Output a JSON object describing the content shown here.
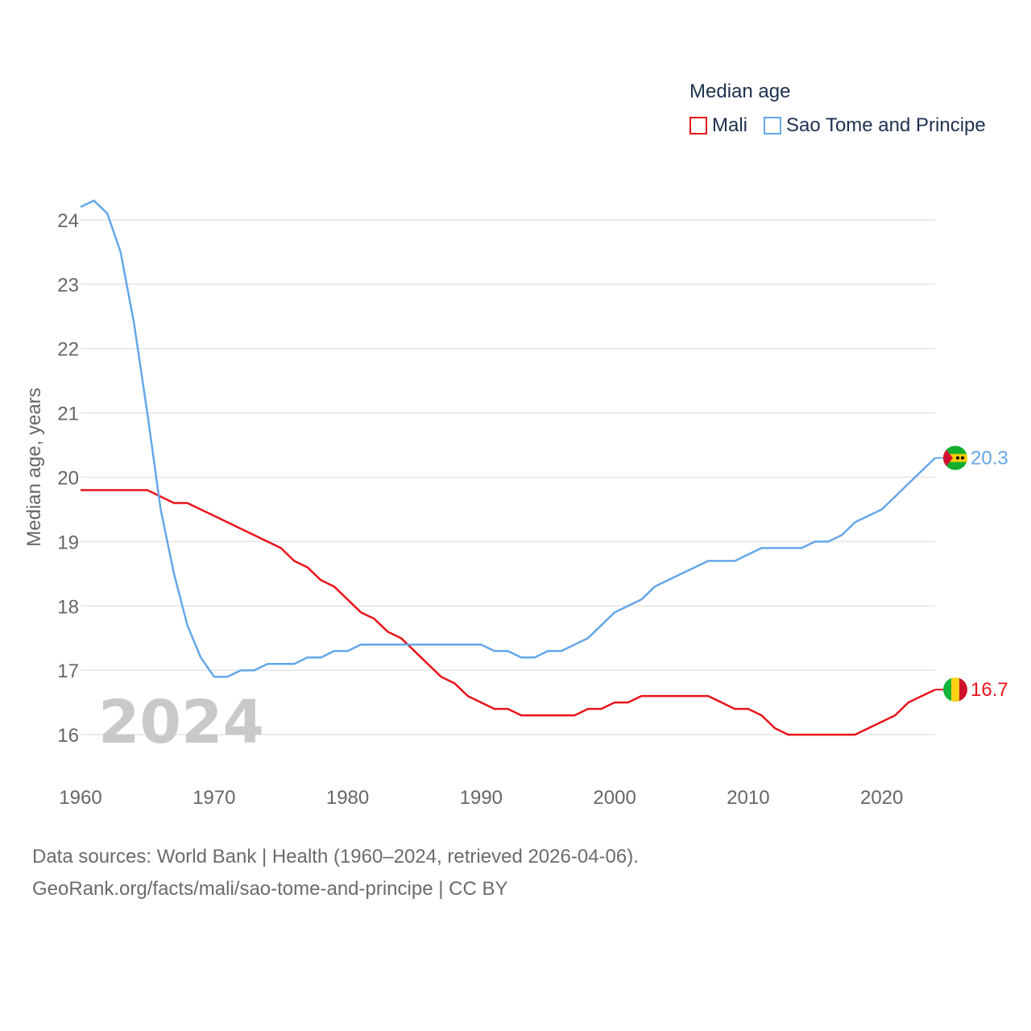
{
  "legend": {
    "title": "Median age",
    "items": [
      {
        "label": "Mali",
        "color": "#e8131b"
      },
      {
        "label": "Sao Tome and Principe",
        "color": "#64a7e8"
      }
    ]
  },
  "footer": {
    "line1": "Data sources: World Bank | Health (1960–2024, retrieved 2026-04-06).",
    "line2": "GeoRank.org/facts/mali/sao-tome-and-principe | CC BY"
  },
  "chart_data": {
    "type": "line",
    "title": "Median age",
    "ylabel": "Median age, years",
    "xlabel": "",
    "watermark_year": "2024",
    "xlim": [
      1960,
      2024
    ],
    "ylim": [
      15.3,
      24.5
    ],
    "xticks": [
      1960,
      1970,
      1980,
      1990,
      2000,
      2010,
      2020
    ],
    "yticks": [
      16,
      17,
      18,
      19,
      20,
      21,
      22,
      23,
      24
    ],
    "x": [
      1960,
      1961,
      1962,
      1963,
      1964,
      1965,
      1966,
      1967,
      1968,
      1969,
      1970,
      1971,
      1972,
      1973,
      1974,
      1975,
      1976,
      1977,
      1978,
      1979,
      1980,
      1981,
      1982,
      1983,
      1984,
      1985,
      1986,
      1987,
      1988,
      1989,
      1990,
      1991,
      1992,
      1993,
      1994,
      1995,
      1996,
      1997,
      1998,
      1999,
      2000,
      2001,
      2002,
      2003,
      2004,
      2005,
      2006,
      2007,
      2008,
      2009,
      2010,
      2011,
      2012,
      2013,
      2014,
      2015,
      2016,
      2017,
      2018,
      2019,
      2020,
      2021,
      2022,
      2023,
      2024
    ],
    "series": [
      {
        "name": "Mali",
        "color": "#e8131b",
        "end_label": "16.7",
        "flag": "mali",
        "values": [
          19.8,
          19.8,
          19.8,
          19.8,
          19.8,
          19.8,
          19.7,
          19.6,
          19.6,
          19.5,
          19.4,
          19.3,
          19.2,
          19.1,
          19.0,
          18.9,
          18.7,
          18.6,
          18.4,
          18.3,
          18.1,
          17.9,
          17.8,
          17.6,
          17.5,
          17.3,
          17.1,
          16.9,
          16.8,
          16.6,
          16.5,
          16.4,
          16.4,
          16.3,
          16.3,
          16.3,
          16.3,
          16.3,
          16.4,
          16.4,
          16.5,
          16.5,
          16.6,
          16.6,
          16.6,
          16.6,
          16.6,
          16.6,
          16.5,
          16.4,
          16.4,
          16.3,
          16.1,
          16.0,
          16.0,
          16.0,
          16.0,
          16.0,
          16.0,
          16.1,
          16.2,
          16.3,
          16.5,
          16.6,
          16.7
        ]
      },
      {
        "name": "Sao Tome and Principe",
        "color": "#64a7e8",
        "end_label": "20.3",
        "flag": "sao-tome",
        "values": [
          24.2,
          24.3,
          24.1,
          23.5,
          22.4,
          21.0,
          19.5,
          18.5,
          17.7,
          17.2,
          16.9,
          16.9,
          17.0,
          17.0,
          17.1,
          17.1,
          17.1,
          17.2,
          17.2,
          17.3,
          17.3,
          17.4,
          17.4,
          17.4,
          17.4,
          17.4,
          17.4,
          17.4,
          17.4,
          17.4,
          17.4,
          17.3,
          17.3,
          17.2,
          17.2,
          17.3,
          17.3,
          17.4,
          17.5,
          17.7,
          17.9,
          18.0,
          18.1,
          18.3,
          18.4,
          18.5,
          18.6,
          18.7,
          18.7,
          18.7,
          18.8,
          18.9,
          18.9,
          18.9,
          18.9,
          19.0,
          19.0,
          19.1,
          19.3,
          19.4,
          19.5,
          19.7,
          19.9,
          20.1,
          20.3
        ]
      }
    ]
  }
}
